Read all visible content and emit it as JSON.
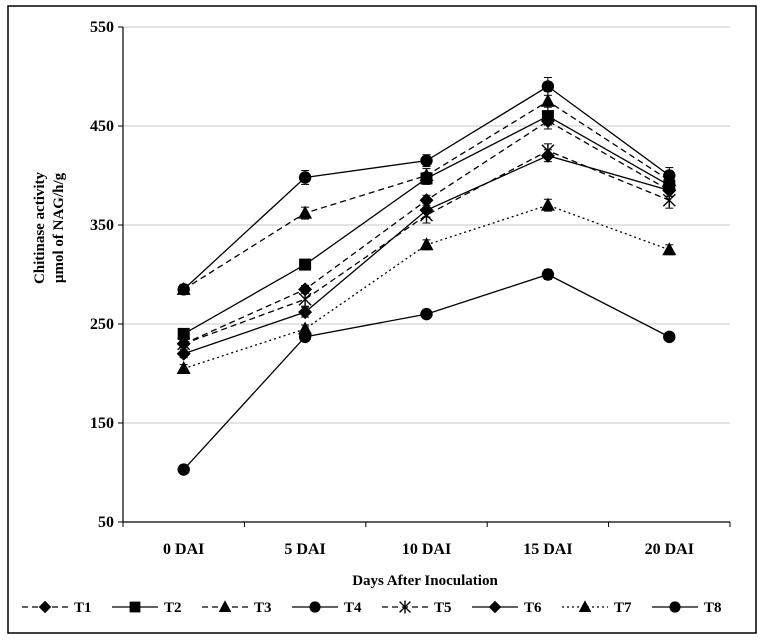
{
  "chart_data": {
    "type": "line",
    "title": "",
    "xlabel": "Days After Inoculation",
    "ylabel_line1": "Chitinase activity",
    "ylabel_line2": "µmol of NAG/h/g",
    "categories": [
      "0 DAI",
      "5 DAI",
      "10 DAI",
      "15 DAI",
      "20 DAI"
    ],
    "ylim": [
      50,
      550
    ],
    "yticks": [
      "50",
      "150",
      "250",
      "350",
      "450",
      "550"
    ],
    "grid": true,
    "legend_position": "bottom",
    "series": [
      {
        "name": "T1",
        "values": [
          230,
          285,
          375,
          455,
          385
        ],
        "dash": "dashed",
        "marker": "diamond",
        "errors": [
          4,
          4,
          5,
          8,
          6
        ]
      },
      {
        "name": "T2",
        "values": [
          240,
          310,
          397,
          460,
          390
        ],
        "dash": "solid",
        "marker": "square",
        "errors": [
          4,
          5,
          6,
          9,
          6
        ]
      },
      {
        "name": "T3",
        "values": [
          285,
          362,
          400,
          475,
          395
        ],
        "dash": "dashed",
        "marker": "triangle",
        "errors": [
          5,
          6,
          7,
          10,
          6
        ]
      },
      {
        "name": "T4",
        "values": [
          285,
          398,
          415,
          490,
          400
        ],
        "dash": "solid",
        "marker": "circle",
        "errors": [
          4,
          7,
          6,
          9,
          8
        ]
      },
      {
        "name": "T5",
        "values": [
          230,
          275,
          360,
          425,
          375
        ],
        "dash": "dashed",
        "marker": "star",
        "errors": [
          4,
          7,
          8,
          7,
          8
        ]
      },
      {
        "name": "T6",
        "values": [
          220,
          262,
          365,
          420,
          385
        ],
        "dash": "solid",
        "marker": "diamond",
        "errors": [
          4,
          5,
          7,
          6,
          6
        ]
      },
      {
        "name": "T7",
        "values": [
          205,
          245,
          330,
          370,
          325
        ],
        "dash": "dotted",
        "marker": "triangle",
        "errors": [
          4,
          4,
          5,
          6,
          5
        ]
      },
      {
        "name": "T8",
        "values": [
          103,
          237,
          260,
          300,
          237
        ],
        "dash": "solid",
        "marker": "circle",
        "errors": [
          3,
          3,
          4,
          5,
          3
        ]
      }
    ]
  }
}
